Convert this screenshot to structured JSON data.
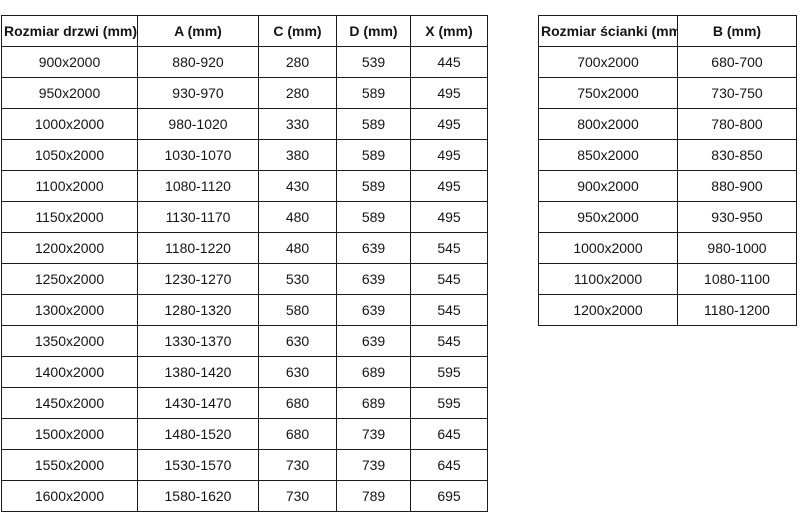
{
  "page": {
    "background": "#ffffff",
    "text_color": "#141414",
    "border_color": "#1c1c1c"
  },
  "door_table": {
    "headers": [
      "Rozmiar drzwi (mm)",
      "A (mm)",
      "C (mm)",
      "D (mm)",
      "X (mm)"
    ],
    "rows": [
      [
        "900x2000",
        "880-920",
        "280",
        "539",
        "445"
      ],
      [
        "950x2000",
        "930-970",
        "280",
        "589",
        "495"
      ],
      [
        "1000x2000",
        "980-1020",
        "330",
        "589",
        "495"
      ],
      [
        "1050x2000",
        "1030-1070",
        "380",
        "589",
        "495"
      ],
      [
        "1100x2000",
        "1080-1120",
        "430",
        "589",
        "495"
      ],
      [
        "1150x2000",
        "1130-1170",
        "480",
        "589",
        "495"
      ],
      [
        "1200x2000",
        "1180-1220",
        "480",
        "639",
        "545"
      ],
      [
        "1250x2000",
        "1230-1270",
        "530",
        "639",
        "545"
      ],
      [
        "1300x2000",
        "1280-1320",
        "580",
        "639",
        "545"
      ],
      [
        "1350x2000",
        "1330-1370",
        "630",
        "639",
        "545"
      ],
      [
        "1400x2000",
        "1380-1420",
        "630",
        "689",
        "595"
      ],
      [
        "1450x2000",
        "1430-1470",
        "680",
        "689",
        "595"
      ],
      [
        "1500x2000",
        "1480-1520",
        "680",
        "739",
        "645"
      ],
      [
        "1550x2000",
        "1530-1570",
        "730",
        "739",
        "645"
      ],
      [
        "1600x2000",
        "1580-1620",
        "730",
        "789",
        "695"
      ]
    ]
  },
  "wall_table": {
    "headers": [
      "Rozmiar ścianki (mm)",
      "B (mm)"
    ],
    "rows": [
      [
        "700x2000",
        "680-700"
      ],
      [
        "750x2000",
        "730-750"
      ],
      [
        "800x2000",
        "780-800"
      ],
      [
        "850x2000",
        "830-850"
      ],
      [
        "900x2000",
        "880-900"
      ],
      [
        "950x2000",
        "930-950"
      ],
      [
        "1000x2000",
        "980-1000"
      ],
      [
        "1100x2000",
        "1080-1100"
      ],
      [
        "1200x2000",
        "1180-1200"
      ]
    ]
  }
}
